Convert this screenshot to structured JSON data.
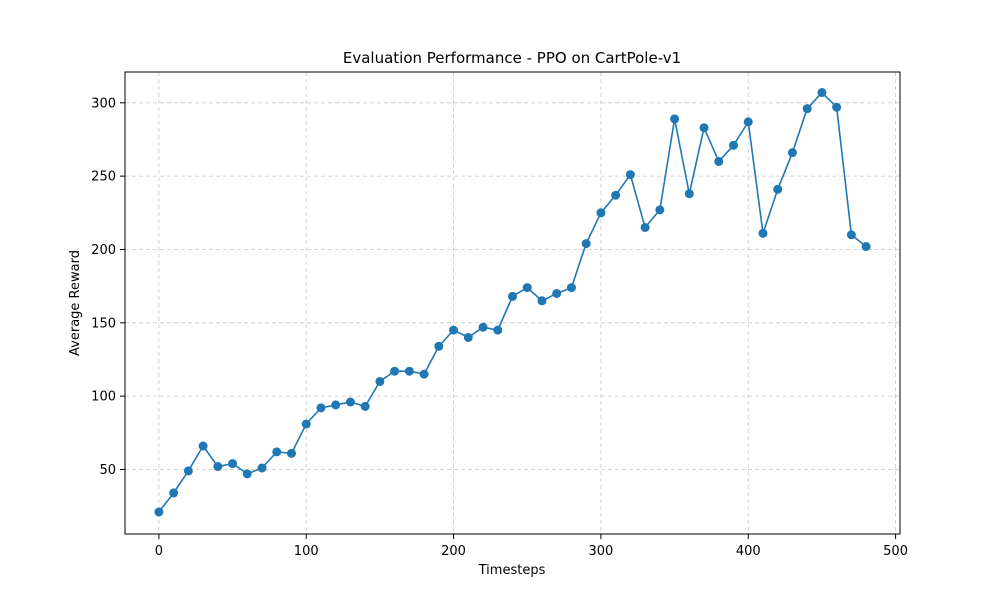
{
  "chart_data": {
    "type": "line",
    "title": "Evaluation Performance - PPO on CartPole-v1",
    "xlabel": "Timesteps",
    "ylabel": "Average Reward",
    "xlim": [
      -23,
      503
    ],
    "ylim": [
      6,
      321
    ],
    "xticks": [
      0,
      100,
      200,
      300,
      400,
      500
    ],
    "yticks": [
      50,
      100,
      150,
      200,
      250,
      300
    ],
    "grid": true,
    "grid_style": "dashed",
    "marker": "circle",
    "series": [
      {
        "color": "#1f77b4",
        "x": [
          0,
          10,
          20,
          30,
          40,
          50,
          60,
          70,
          80,
          90,
          100,
          110,
          120,
          130,
          140,
          150,
          160,
          170,
          180,
          190,
          200,
          210,
          220,
          230,
          240,
          250,
          260,
          270,
          280,
          290,
          300,
          310,
          320,
          330,
          340,
          350,
          360,
          370,
          380,
          390,
          400,
          410,
          420,
          430,
          440,
          450,
          460,
          470,
          480
        ],
        "y": [
          21,
          34,
          49,
          66,
          52,
          54,
          47,
          51,
          62,
          61,
          81,
          92,
          94,
          96,
          93,
          110,
          117,
          117,
          115,
          134,
          145,
          140,
          147,
          145,
          168,
          174,
          165,
          170,
          174,
          204,
          225,
          237,
          251,
          215,
          227,
          289,
          238,
          283,
          260,
          271,
          287,
          211,
          241,
          266,
          296,
          307,
          297,
          210,
          202
        ]
      }
    ]
  }
}
